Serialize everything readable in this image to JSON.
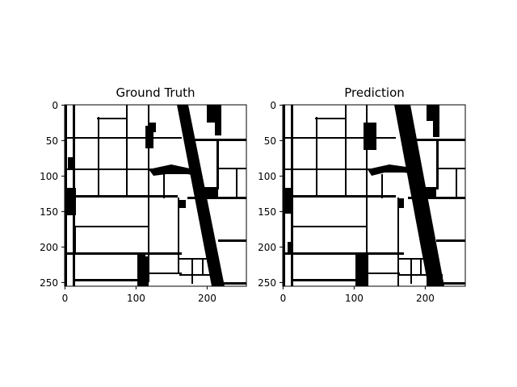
{
  "figure": {
    "panels": [
      {
        "title": "Ground Truth",
        "xticks": [
          "0",
          "100",
          "200"
        ],
        "yticks": [
          "0",
          "50",
          "100",
          "150",
          "200",
          "250"
        ]
      },
      {
        "title": "Prediction",
        "xticks": [
          "0",
          "100",
          "200"
        ],
        "yticks": [
          "0",
          "50",
          "100",
          "150",
          "200",
          "250"
        ]
      }
    ],
    "image_size": "256x256 binary segmentation mask"
  }
}
